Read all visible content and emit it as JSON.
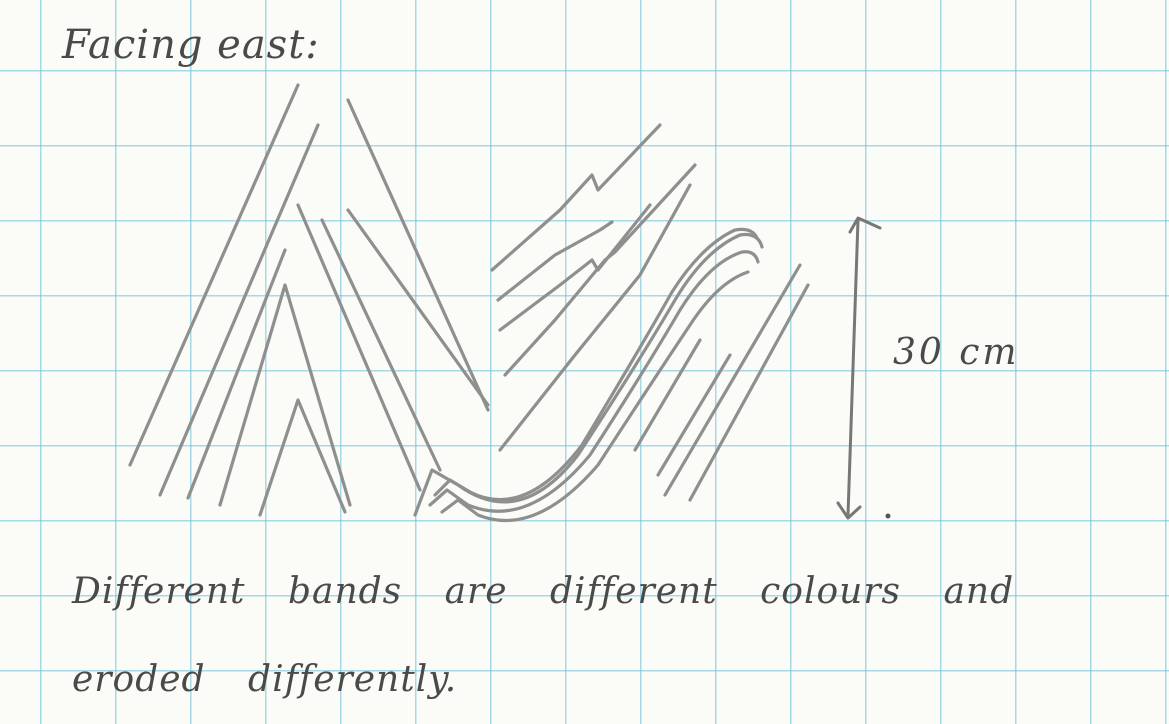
{
  "heading": "Facing east:",
  "height_label": "30 cm",
  "note": "Different bands are different colours and eroded differently."
}
